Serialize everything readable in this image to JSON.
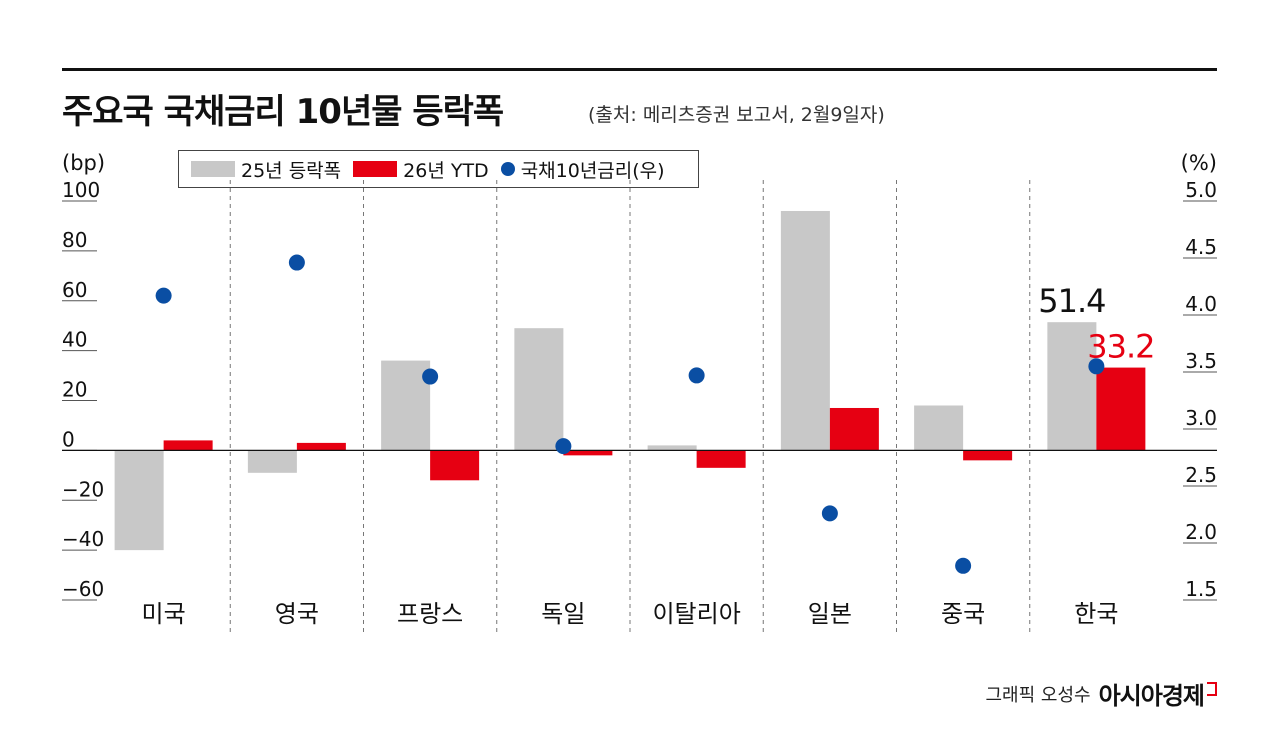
{
  "title": "주요국 국채금리 10년물 등락폭",
  "subtitle": "(출처: 메리츠증권 보고서, 2월9일자)",
  "credit": {
    "author": "그래픽 오성수",
    "logo": "아시아경제"
  },
  "colors": {
    "bar25": "#c8c8c8",
    "bar26": "#e60012",
    "dot": "#0a4ea3"
  },
  "chart_data": {
    "type": "bar",
    "categories": [
      "미국",
      "영국",
      "프랑스",
      "독일",
      "이탈리아",
      "일본",
      "중국",
      "한국"
    ],
    "series": [
      {
        "name": "25년 등락폭",
        "axis": "left",
        "values": [
          -40,
          -9,
          36,
          49,
          2,
          96,
          18,
          51.4
        ]
      },
      {
        "name": "26년 YTD",
        "axis": "left",
        "values": [
          4,
          3,
          -12,
          -2,
          -7,
          17,
          -4,
          33.2
        ]
      },
      {
        "name": "국채10년금리(우)",
        "axis": "right",
        "type": "scatter",
        "values": [
          4.17,
          4.46,
          3.46,
          2.85,
          3.47,
          2.26,
          1.8,
          3.55
        ]
      }
    ],
    "data_labels": [
      {
        "category": "한국",
        "series": "25년 등락폭",
        "text": "51.4"
      },
      {
        "category": "한국",
        "series": "26년 YTD",
        "text": "33.2"
      }
    ],
    "y_left": {
      "unit": "(bp)",
      "ylim": [
        -60,
        100
      ],
      "ticks": [
        "100",
        "80",
        "60",
        "40",
        "20",
        "0",
        "−20",
        "−40",
        "−60"
      ]
    },
    "y_right": {
      "unit": "(%)",
      "ylim": [
        1.5,
        5.0
      ],
      "ticks": [
        "5.0",
        "4.5",
        "4.0",
        "3.5",
        "3.0",
        "2.5",
        "2.0",
        "1.5"
      ]
    },
    "legend_placement": "top-left",
    "grid": false
  }
}
